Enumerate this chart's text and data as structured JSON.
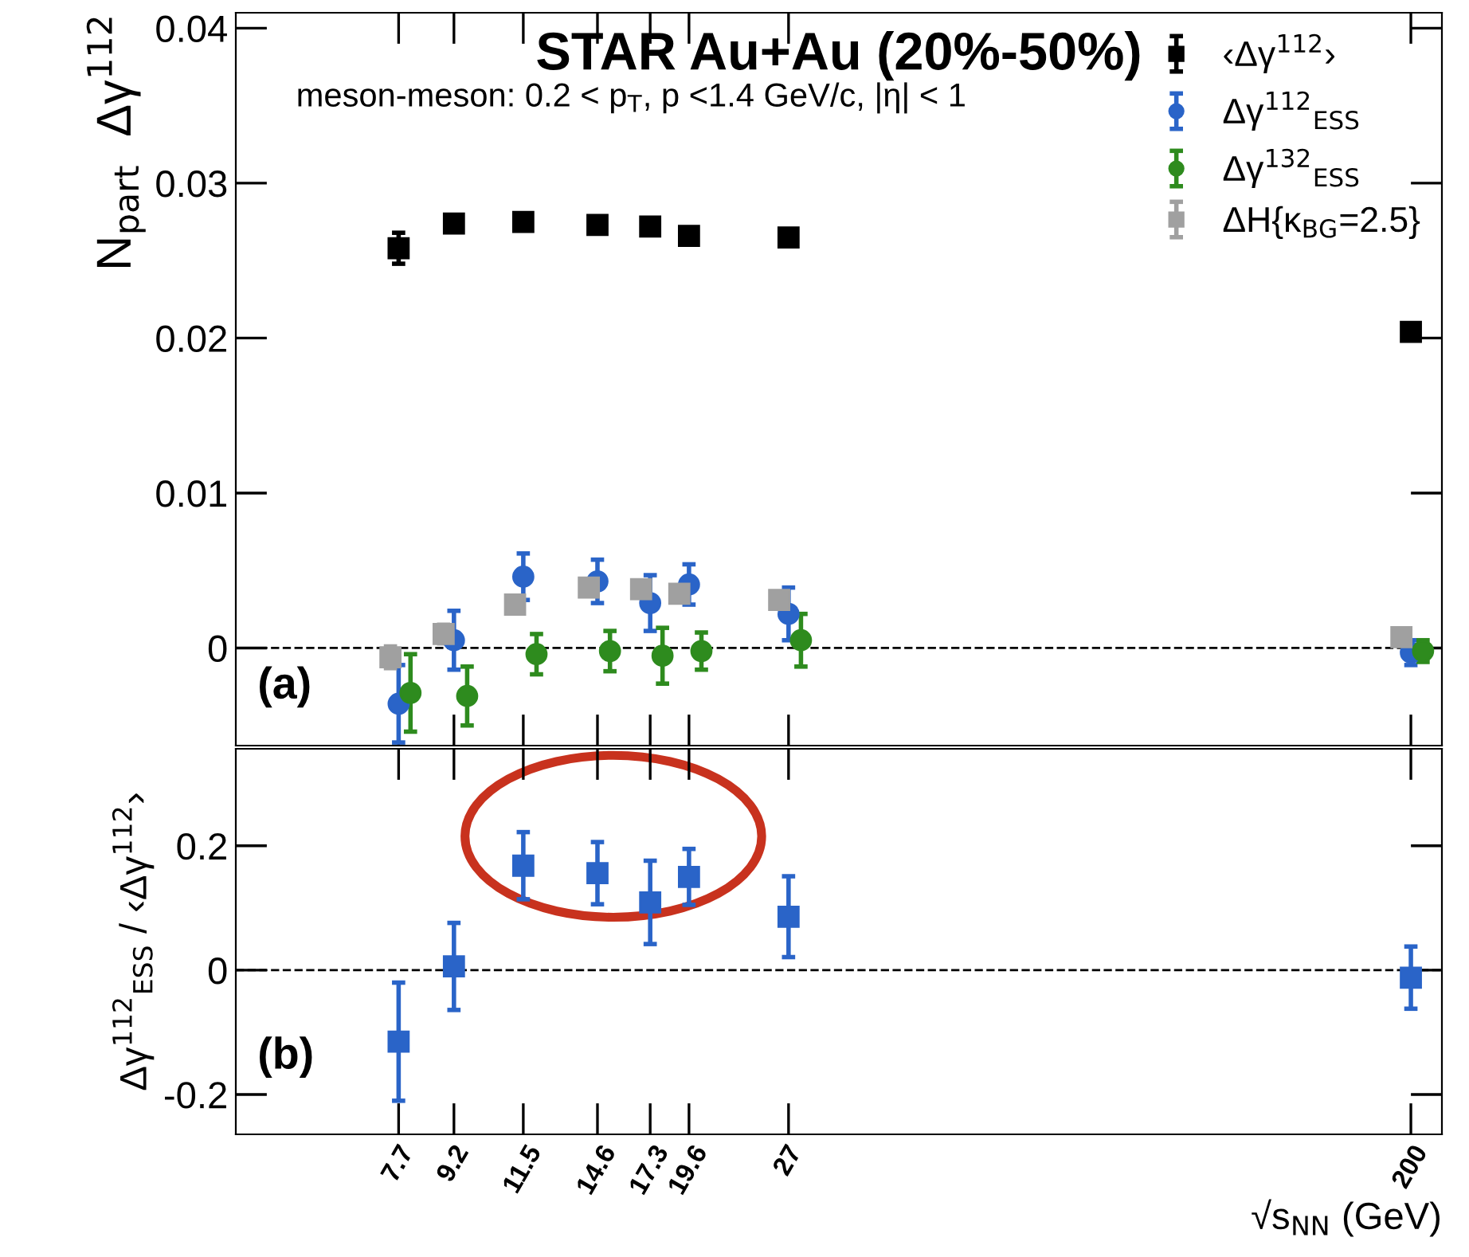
{
  "chart_data": [
    {
      "type": "scatter",
      "title": "STAR Au+Au (20%-50%)",
      "subtitle": "meson-meson: 0.2 < p$_{T}$, p <1.4 GeV/c, |η| < 1",
      "ylabel": "N$_{part}$  Δγ$^{112}$",
      "log": "x",
      "xlim": [
        4.56,
        221
      ],
      "xticks": [
        7.7,
        9.2,
        11.5,
        14.6,
        17.3,
        19.6,
        27,
        200
      ],
      "ylim": [
        -0.0063,
        0.041
      ],
      "yticks": [
        0,
        0.01,
        0.02,
        0.03,
        0.04
      ],
      "tick_labels": "y",
      "legend": "top right",
      "series": [
        {
          "name": "‹Δγ$^{112}$›",
          "color": "#000000",
          "marker": "square",
          "x": [
            7.7,
            9.2,
            11.5,
            14.6,
            17.3,
            19.6,
            27,
            200
          ],
          "values": [
            0.0258,
            0.0274,
            0.0275,
            0.0273,
            0.0272,
            0.0266,
            0.0265,
            0.0204
          ],
          "errors": [
            0.001,
            0.0005,
            0.0005,
            0.0005,
            0.0005,
            0.0004,
            0.0005,
            0.0003
          ]
        },
        {
          "name": "Δγ$^{112}$$_{ESS}$",
          "color": "#2a64c8",
          "marker": "circle",
          "x": [
            7.7,
            9.2,
            11.5,
            14.6,
            17.3,
            19.6,
            27,
            200
          ],
          "values": [
            -0.0036,
            0.0005,
            0.0046,
            0.0043,
            0.0029,
            0.0041,
            0.0022,
            -0.0003
          ],
          "errors": [
            0.0025,
            0.0019,
            0.0015,
            0.0014,
            0.0018,
            0.0013,
            0.0017,
            0.0008
          ]
        },
        {
          "name": "Δγ$^{132}$$_{ESS}$",
          "color": "#2e8b1e",
          "marker": "circle",
          "x": [
            8.0,
            9.6,
            12.0,
            15.2,
            18.0,
            20.4,
            28.1,
            208
          ],
          "values": [
            -0.0029,
            -0.0031,
            -0.0004,
            -0.0002,
            -0.0005,
            -0.0002,
            0.0005,
            -0.0002
          ],
          "errors": [
            0.0025,
            0.0019,
            0.0013,
            0.0013,
            0.0018,
            0.0012,
            0.0017,
            0.0007
          ]
        },
        {
          "name": "ΔH{κ$_{BG}$=2.5}",
          "color": "#a0a0a0",
          "marker": "square",
          "x": [
            7.5,
            8.9,
            11.2,
            14.2,
            16.8,
            19.0,
            26.2,
            194
          ],
          "values": [
            -0.0006,
            0.0009,
            0.0028,
            0.0039,
            0.0038,
            0.0035,
            0.0031,
            0.0007
          ],
          "errors": [
            0.0007,
            0.0006,
            0.0005,
            0.0005,
            0.0005,
            0.0005,
            0.0005,
            0.0004
          ]
        }
      ],
      "ref_lines": [
        {
          "axis": "y",
          "value": 0,
          "line_style": "dashed",
          "color": "#000000"
        }
      ],
      "annotations": [
        "(a)"
      ]
    },
    {
      "type": "scatter",
      "ylabel": "Δγ$^{112}$$_{ESS}$ / ‹Δγ$^{112}$›",
      "xlabel": "√s$_{NN}$ (GeV)",
      "log": "x",
      "xlim": [
        4.56,
        221
      ],
      "xticks": [
        7.7,
        9.2,
        11.5,
        14.6,
        17.3,
        19.6,
        27,
        200
      ],
      "ylim": [
        -0.264,
        0.356
      ],
      "yticks": [
        -0.2,
        0,
        0.2
      ],
      "series": [
        {
          "color": "#2a64c8",
          "marker": "square",
          "x": [
            7.7,
            9.2,
            11.5,
            14.6,
            17.3,
            19.6,
            27,
            200
          ],
          "values": [
            -0.115,
            0.006,
            0.168,
            0.156,
            0.109,
            0.15,
            0.086,
            -0.012
          ],
          "errors": [
            0.095,
            0.07,
            0.054,
            0.05,
            0.067,
            0.045,
            0.065,
            0.05
          ]
        }
      ],
      "ref_lines": [
        {
          "axis": "y",
          "value": 0,
          "line_style": "dashed",
          "color": "#000000"
        }
      ],
      "annotations": [
        "(b)"
      ]
    }
  ]
}
